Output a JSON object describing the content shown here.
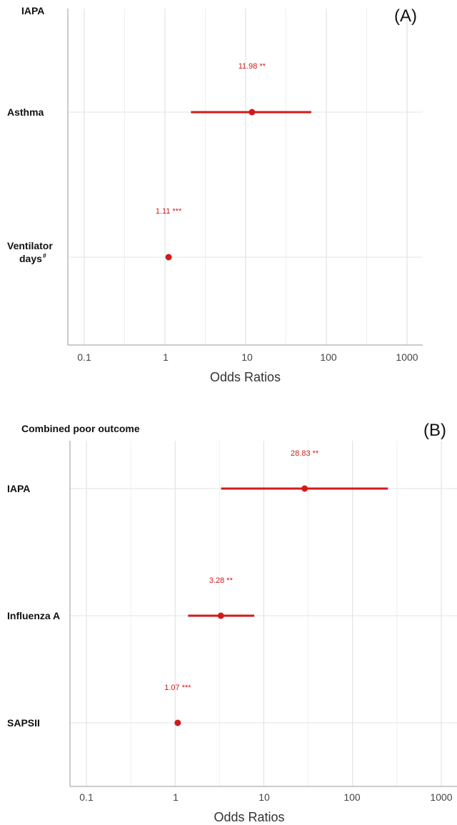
{
  "chart_data": [
    {
      "type": "forest",
      "panel_letter": "(A)",
      "title": "IAPA",
      "xlabel": "Odds Ratios",
      "x_scale": "log",
      "xlim": [
        0.1,
        1000
      ],
      "ticks": [
        "0.1",
        "1",
        "10",
        "100",
        "1000"
      ],
      "color": "#d11a1a",
      "grid": true,
      "rows": [
        {
          "label": "Asthma",
          "sup": "",
          "or": 11.98,
          "ci": [
            2.1,
            65
          ],
          "annotation": "11.98 **"
        },
        {
          "label": "Ventilator",
          "label2": "days",
          "sup": "#",
          "or": 1.11,
          "ci": [
            1.05,
            1.17
          ],
          "annotation": "1.11 ***"
        }
      ]
    },
    {
      "type": "forest",
      "panel_letter": "(B)",
      "title": "Combined poor outcome",
      "xlabel": "Odds Ratios",
      "x_scale": "log",
      "xlim": [
        0.1,
        1000
      ],
      "ticks": [
        "0.1",
        "1",
        "10",
        "100",
        "1000"
      ],
      "color": "#d11a1a",
      "grid": true,
      "rows": [
        {
          "label": "IAPA",
          "sup": "",
          "or": 28.83,
          "ci": [
            3.3,
            250
          ],
          "annotation": "28.83 **"
        },
        {
          "label": "Influenza A",
          "sup": "",
          "or": 3.28,
          "ci": [
            1.4,
            7.8
          ],
          "annotation": "3.28 **"
        },
        {
          "label": "SAPSII",
          "sup": "",
          "or": 1.07,
          "ci": [
            1.04,
            1.1
          ],
          "annotation": "1.07 ***"
        }
      ]
    }
  ]
}
